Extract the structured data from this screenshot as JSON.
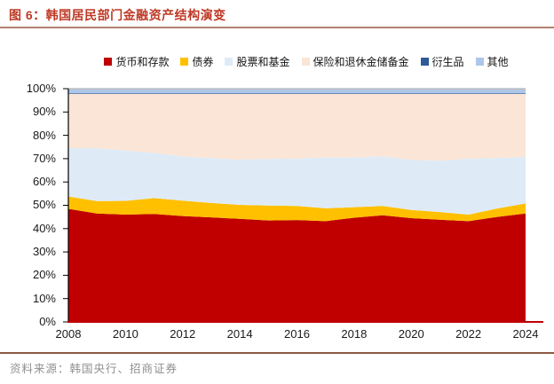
{
  "header": {
    "title": "图 6：韩国居民部门金融资产结构演变"
  },
  "footer": {
    "source": "资料来源：韩国央行、招商证券"
  },
  "colors": {
    "title": "#BE3A26",
    "title_underline": "#B3806E",
    "footer_line": "#8A5A44",
    "axis_bottom": "#C00000",
    "axis_left": "#000000",
    "plot_top_border": "#BFBFBF"
  },
  "chart_data": {
    "type": "area",
    "stacked": true,
    "normalized": "100%",
    "title": "韩国居民部门金融资产结构演变",
    "xlabel": "",
    "ylabel": "",
    "ylim": [
      0,
      100
    ],
    "grid": false,
    "legend_position": "top",
    "x": [
      2008,
      2009,
      2010,
      2011,
      2012,
      2013,
      2014,
      2015,
      2016,
      2017,
      2018,
      2019,
      2020,
      2021,
      2022,
      2023,
      2024
    ],
    "x_tick_labels": [
      "2008",
      "2010",
      "2012",
      "2014",
      "2016",
      "2018",
      "2020",
      "2022",
      "2024"
    ],
    "y_tick_labels": [
      "100%",
      "90%",
      "80%",
      "70%",
      "60%",
      "50%",
      "40%",
      "30%",
      "20%",
      "10%",
      "0%"
    ],
    "series": [
      {
        "key": "currency-deposits",
        "name": "货币和存款",
        "color": "#C00000",
        "values": [
          48.5,
          46.5,
          46.0,
          46.3,
          45.4,
          44.8,
          44.2,
          43.5,
          43.7,
          43.2,
          44.7,
          45.7,
          44.5,
          43.8,
          43.2,
          45.0,
          46.5
        ]
      },
      {
        "key": "bonds",
        "name": "债券",
        "color": "#FFC000",
        "values": [
          5.3,
          5.3,
          5.9,
          6.8,
          6.6,
          6.2,
          6.0,
          6.4,
          6.0,
          5.5,
          4.5,
          4.0,
          3.5,
          3.3,
          2.8,
          3.6,
          4.3
        ]
      },
      {
        "key": "stocks-funds",
        "name": "股票和基金",
        "color": "#DEEBF7",
        "values": [
          20.7,
          22.7,
          21.6,
          19.4,
          19.0,
          19.2,
          19.4,
          20.0,
          20.3,
          21.8,
          21.3,
          21.3,
          21.5,
          22.0,
          24.0,
          21.7,
          19.9
        ]
      },
      {
        "key": "insurance-pension",
        "name": "保险和退休金储备金",
        "color": "#FBE5D6",
        "values": [
          23.2,
          23.2,
          24.2,
          25.2,
          26.7,
          27.5,
          28.1,
          27.8,
          27.7,
          27.2,
          27.2,
          26.7,
          28.2,
          28.6,
          27.7,
          27.4,
          27.0
        ]
      },
      {
        "key": "derivatives",
        "name": "衍生品",
        "color": "#2E5B97",
        "values": [
          0.3,
          0.3,
          0.3,
          0.3,
          0.3,
          0.3,
          0.3,
          0.3,
          0.3,
          0.3,
          0.3,
          0.3,
          0.3,
          0.3,
          0.3,
          0.3,
          0.3
        ]
      },
      {
        "key": "others",
        "name": "其他",
        "color": "#AEC6E8",
        "values": [
          2.0,
          2.0,
          2.0,
          2.0,
          2.0,
          2.0,
          2.0,
          2.0,
          2.0,
          2.0,
          2.0,
          2.0,
          2.0,
          2.0,
          2.0,
          2.0,
          2.0
        ]
      }
    ]
  }
}
